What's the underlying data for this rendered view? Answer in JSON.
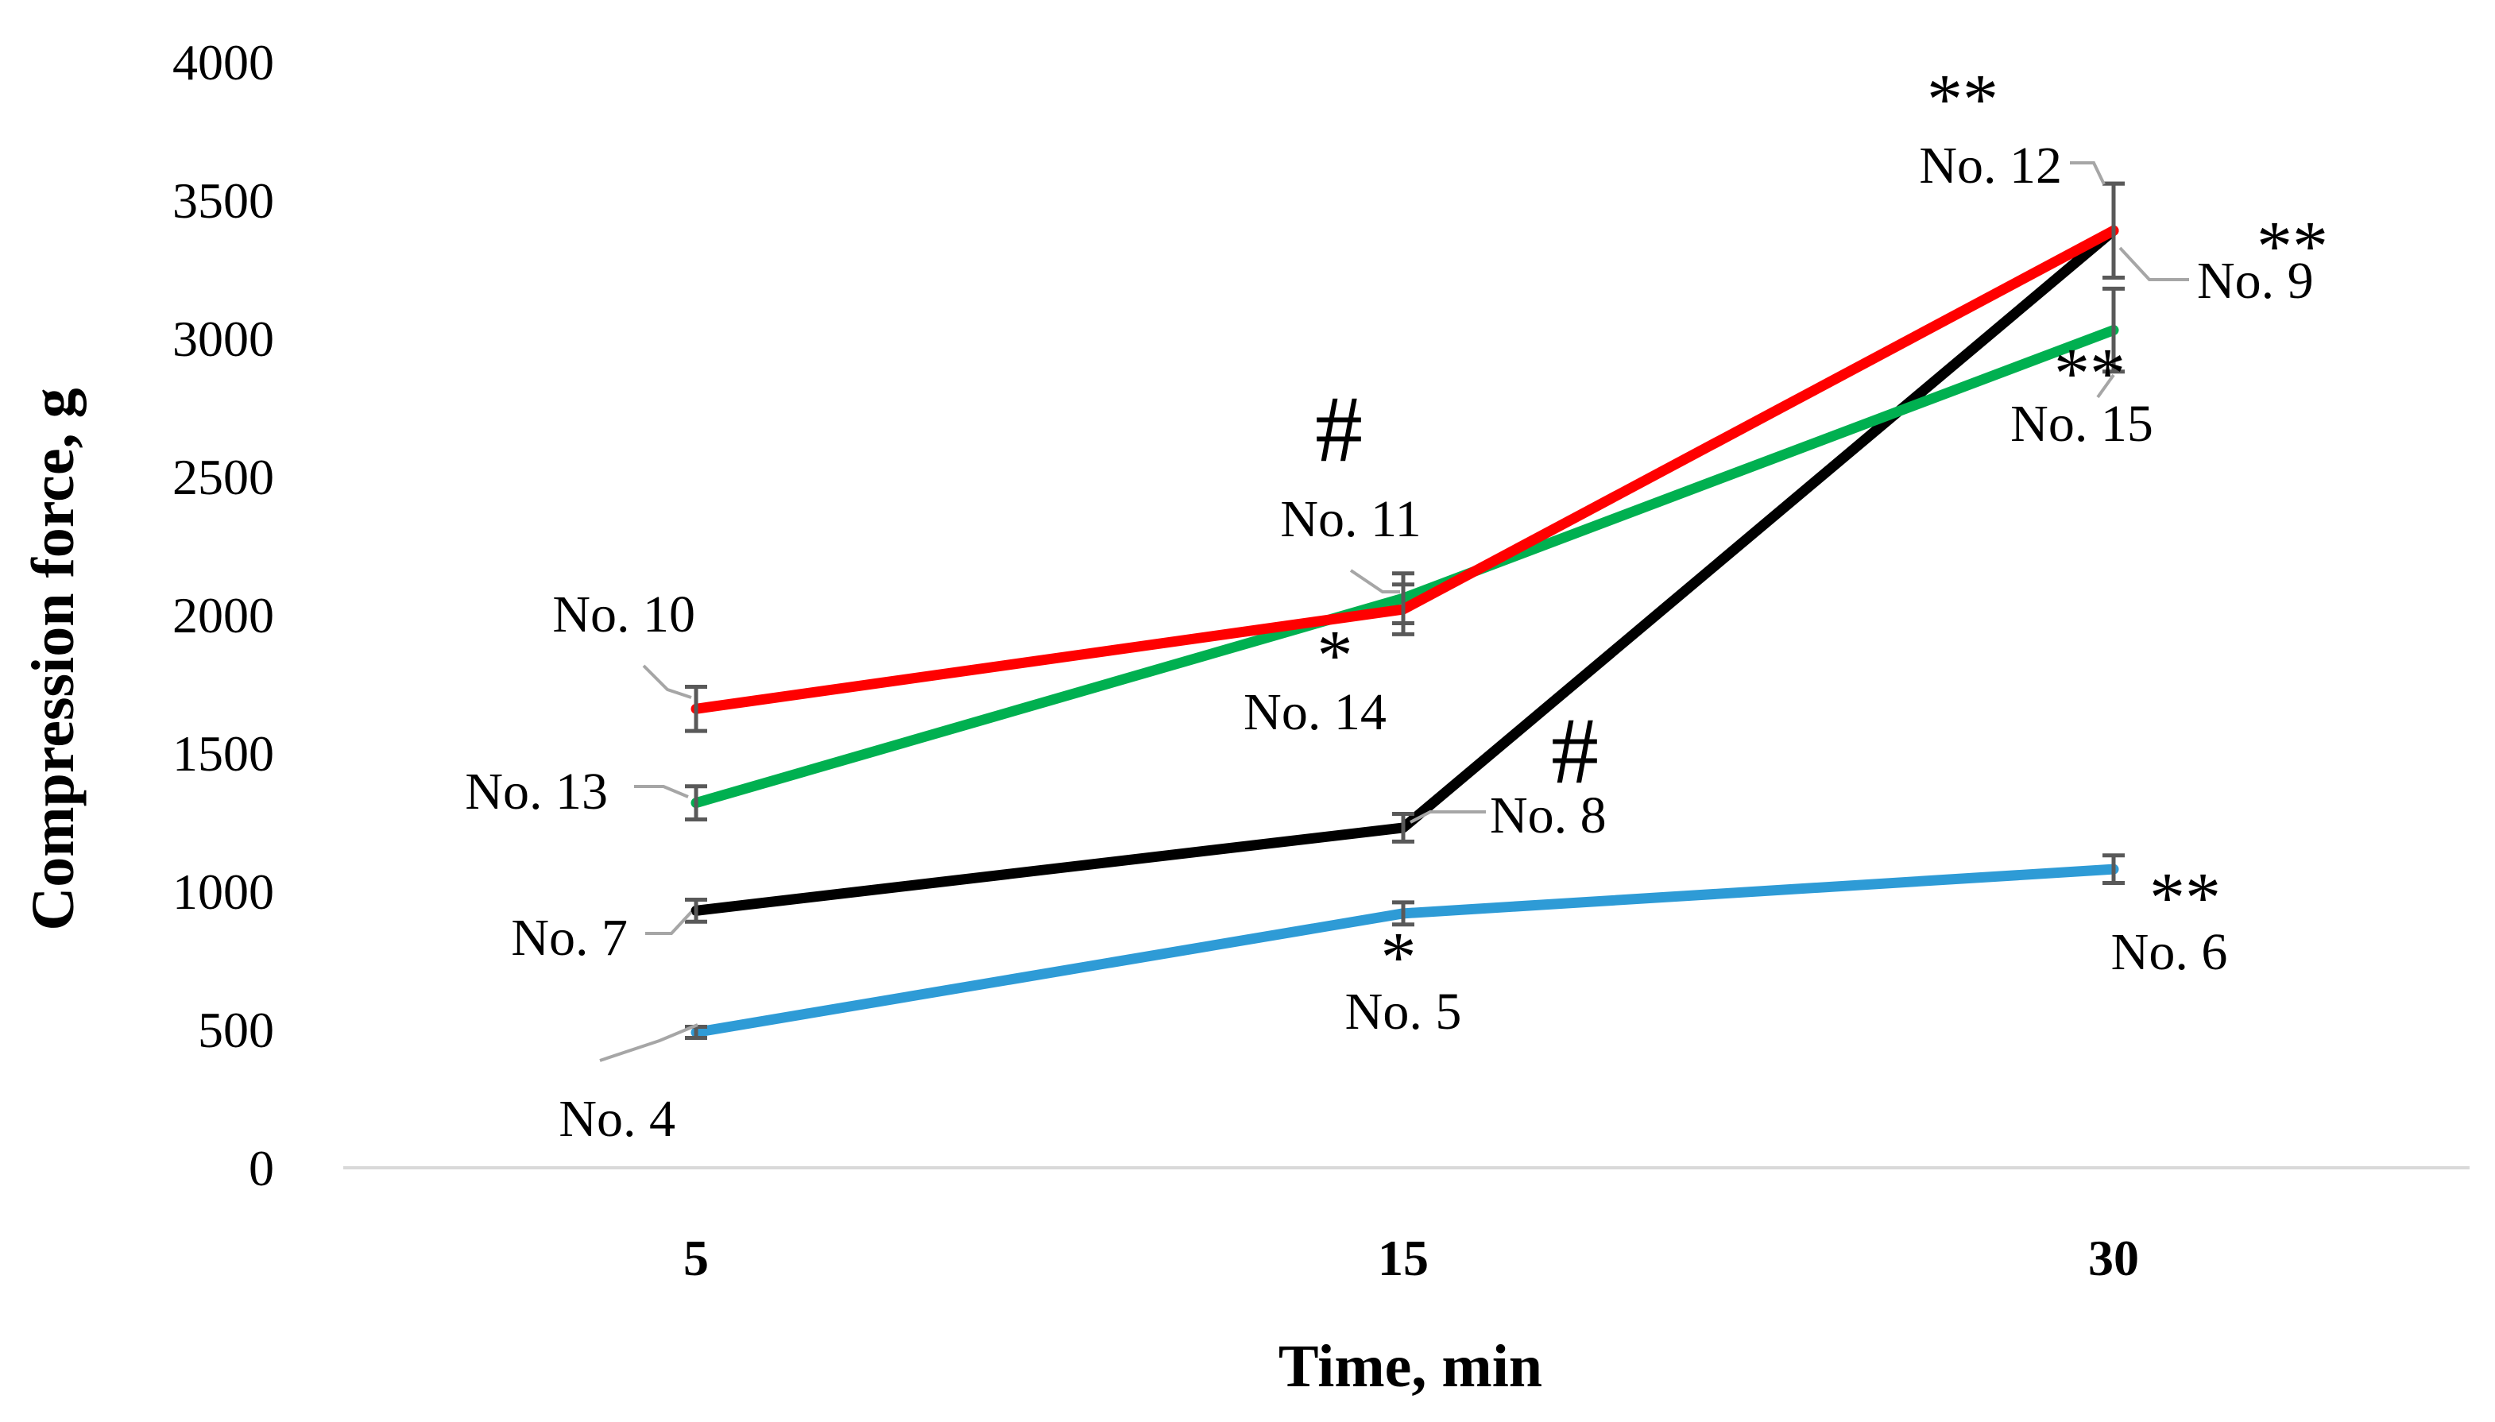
{
  "chart_data": {
    "type": "line",
    "title": "",
    "xlabel": "Time, min",
    "ylabel": "Compression force, g",
    "categories": [
      "5",
      "15",
      "30"
    ],
    "yticks": [
      "0",
      "500",
      "1000",
      "1500",
      "2000",
      "2500",
      "3000",
      "3500",
      "4000"
    ],
    "ylim": [
      0,
      4000
    ],
    "grid": false,
    "legend": "none",
    "series": [
      {
        "name": "blue",
        "color": "#2E9BD6",
        "values": [
          490,
          920,
          1080
        ],
        "errors": [
          20,
          40,
          50
        ],
        "labels": [
          "No. 4",
          "No. 5",
          "No. 6"
        ],
        "marks": [
          "",
          "*",
          "**"
        ]
      },
      {
        "name": "black",
        "color": "#000000",
        "values": [
          930,
          1230,
          3390
        ],
        "errors": [
          40,
          50,
          170
        ],
        "labels": [
          "No. 7",
          "No. 8",
          "No. 9"
        ],
        "marks": [
          "",
          "#",
          "**"
        ]
      },
      {
        "name": "red",
        "color": "#FF0000",
        "values": [
          1660,
          2020,
          3390
        ],
        "errors": [
          80,
          90,
          170
        ],
        "labels": [
          "No. 10",
          "No. 11",
          "No. 12"
        ],
        "marks": [
          "",
          "#",
          "**"
        ]
      },
      {
        "name": "green",
        "color": "#00B050",
        "values": [
          1320,
          2060,
          3030
        ],
        "errors": [
          60,
          90,
          150
        ],
        "labels": [
          "No. 13",
          "No. 14",
          "No. 15"
        ],
        "marks": [
          "",
          "*",
          "**"
        ]
      }
    ]
  }
}
